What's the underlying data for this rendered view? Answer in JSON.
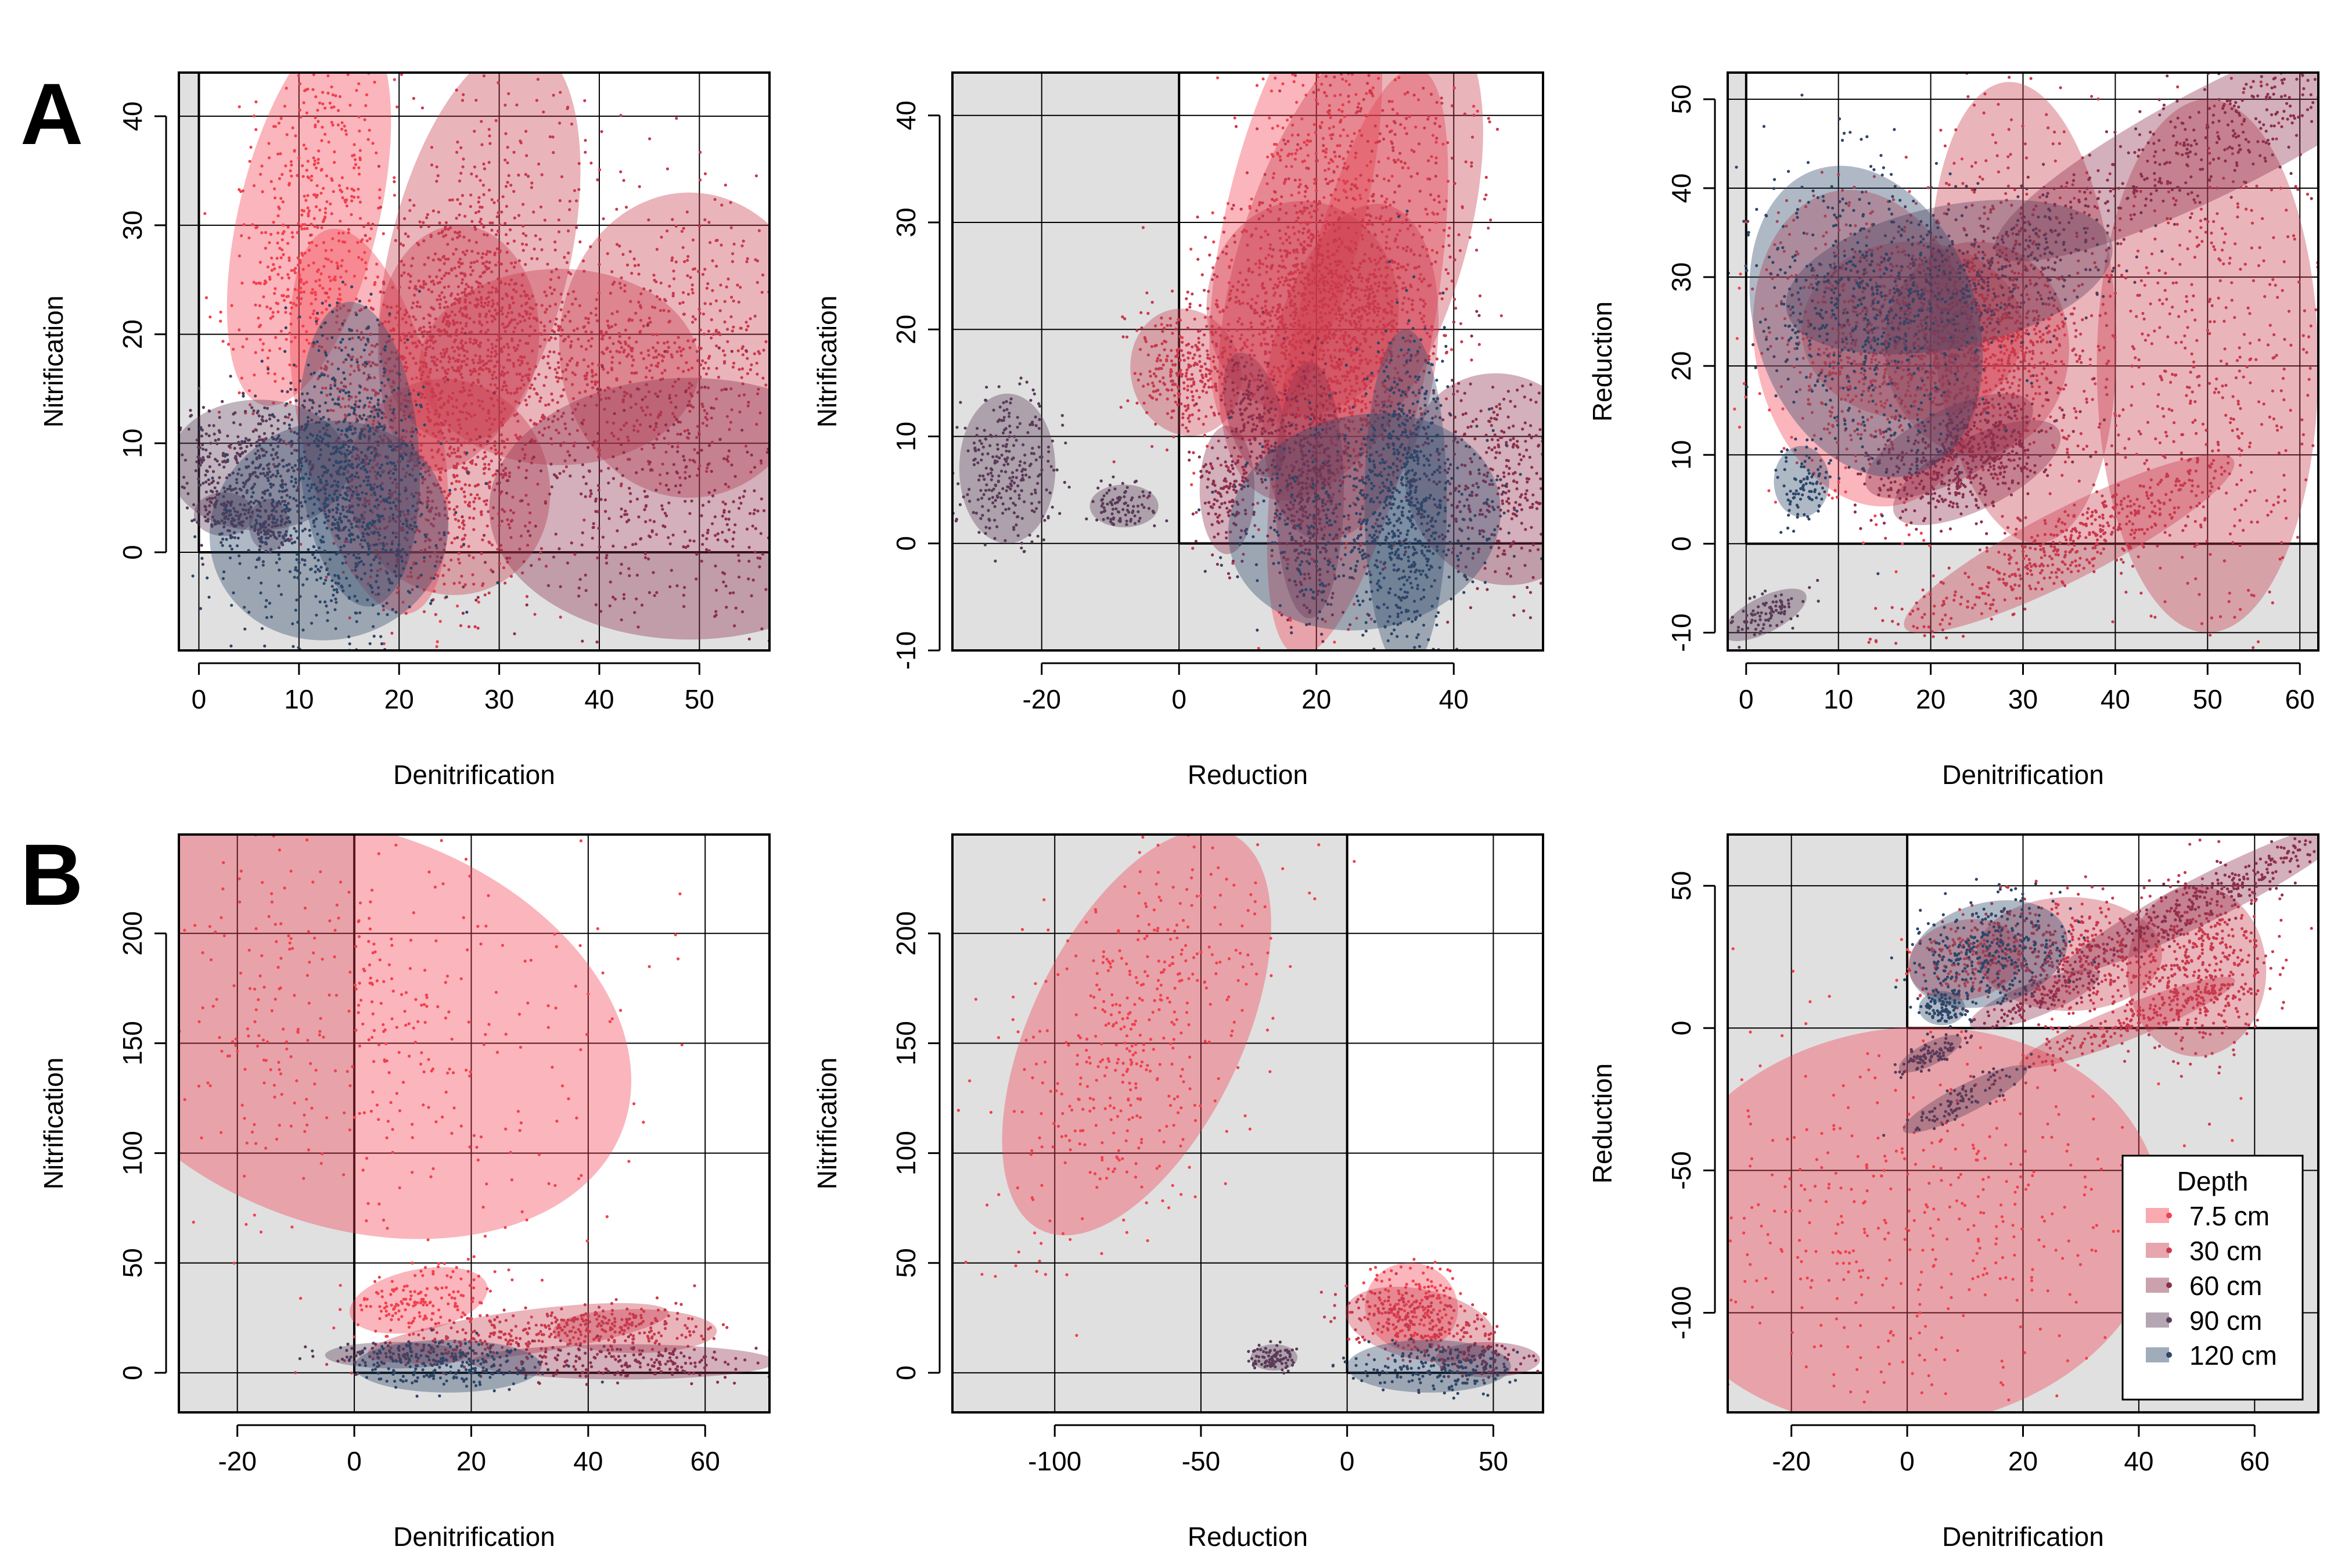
{
  "figure": {
    "panel_letters": [
      "A",
      "B"
    ],
    "legend": {
      "title": "Depth",
      "items": [
        {
          "label": "7.5 cm",
          "color": "#f2404e"
        },
        {
          "label": "30 cm",
          "color": "#c9394c"
        },
        {
          "label": "60 cm",
          "color": "#8c2f4c"
        },
        {
          "label": "90 cm",
          "color": "#5a3a58"
        },
        {
          "label": "120 cm",
          "color": "#2e4668"
        }
      ]
    },
    "colors": {
      "quadrant_shade": "#e0e0e0",
      "plot_background": "#ffffff"
    }
  },
  "chart_data": [
    {
      "type": "scatter",
      "row": "A",
      "xlabel": "Denitrification",
      "ylabel": "Nitrification",
      "xlim": [
        -2,
        57
      ],
      "ylim": [
        -9,
        44
      ],
      "xticks": [
        0,
        10,
        20,
        30,
        40,
        50
      ],
      "yticks": [
        0,
        10,
        20,
        30,
        40
      ],
      "ellipses": [
        {
          "depth": "7.5 cm",
          "cx": 11,
          "cy": 31,
          "sx": 3.5,
          "sy": 9,
          "r": -0.35
        },
        {
          "depth": "7.5 cm",
          "cx": 17,
          "cy": 12,
          "sx": 3.5,
          "sy": 9,
          "r": 0.3
        },
        {
          "depth": "30 cm",
          "cx": 28,
          "cy": 27,
          "sx": 4.5,
          "sy": 10,
          "r": -0.35
        },
        {
          "depth": "30 cm",
          "cx": 36,
          "cy": 17,
          "sx": 7,
          "sy": 4.5,
          "r": 0
        },
        {
          "depth": "30 cm",
          "cx": 49,
          "cy": 19,
          "sx": 6.5,
          "sy": 7,
          "r": 0
        },
        {
          "depth": "30 cm",
          "cx": 26,
          "cy": 20,
          "sx": 4,
          "sy": 5,
          "r": 0
        },
        {
          "depth": "30 cm",
          "cx": 25,
          "cy": 6,
          "sx": 5,
          "sy": 5,
          "r": 0.5
        },
        {
          "depth": "60 cm",
          "cx": 49,
          "cy": 4,
          "sx": 10,
          "sy": 6,
          "r": 0
        },
        {
          "depth": "90 cm",
          "cx": 6,
          "cy": 8,
          "sx": 4.5,
          "sy": 3,
          "r": 0
        },
        {
          "depth": "90 cm",
          "cx": 2.5,
          "cy": 3.5,
          "sx": 1.5,
          "sy": 1,
          "r": 0
        },
        {
          "depth": "90 cm",
          "cx": 7,
          "cy": 2.5,
          "sx": 1,
          "sy": 1.2,
          "r": 0
        },
        {
          "depth": "120 cm",
          "cx": 13,
          "cy": 2,
          "sx": 6,
          "sy": 5,
          "r": 0.4
        },
        {
          "depth": "120 cm",
          "cx": 16,
          "cy": 9,
          "sx": 3,
          "sy": 7,
          "r": 0.1
        }
      ]
    },
    {
      "type": "scatter",
      "row": "A",
      "xlabel": "Reduction",
      "ylabel": "Nitrification",
      "xlim": [
        -33,
        53
      ],
      "ylim": [
        -10,
        44
      ],
      "xticks": [
        -20,
        0,
        20,
        40
      ],
      "yticks": [
        -10,
        0,
        10,
        20,
        30,
        40
      ],
      "ellipses": [
        {
          "depth": "7.5 cm",
          "cx": 17,
          "cy": 31,
          "sx": 5,
          "sy": 11,
          "r": -0.35
        },
        {
          "depth": "7.5 cm",
          "cx": 26,
          "cy": 17,
          "sx": 5,
          "sy": 14,
          "r": -0.3
        },
        {
          "depth": "30 cm",
          "cx": 25,
          "cy": 27,
          "sx": 8,
          "sy": 12,
          "r": -0.5
        },
        {
          "depth": "30 cm",
          "cx": 18,
          "cy": 22,
          "sx": 7,
          "sy": 5,
          "r": 0
        },
        {
          "depth": "30 cm",
          "cx": 1,
          "cy": 16,
          "sx": 4,
          "sy": 3,
          "r": 0.4
        },
        {
          "depth": "30 cm",
          "cx": 25,
          "cy": 16,
          "sx": 6,
          "sy": 8,
          "r": -0.3
        },
        {
          "depth": "60 cm",
          "cx": 47,
          "cy": 6,
          "sx": 7,
          "sy": 5,
          "r": 0.5
        },
        {
          "depth": "60 cm",
          "cx": 19,
          "cy": 5,
          "sx": 2.5,
          "sy": 6,
          "r": 0
        },
        {
          "depth": "60 cm",
          "cx": 11,
          "cy": 12,
          "sx": 2,
          "sy": 3,
          "r": 0.4
        },
        {
          "depth": "60 cm",
          "cx": 7,
          "cy": 5,
          "sx": 2,
          "sy": 3,
          "r": 0
        },
        {
          "depth": "90 cm",
          "cx": -25,
          "cy": 7,
          "sx": 3.5,
          "sy": 3.5,
          "r": 0
        },
        {
          "depth": "90 cm",
          "cx": -8,
          "cy": 3.5,
          "sx": 2.5,
          "sy": 1,
          "r": 0
        },
        {
          "depth": "120 cm",
          "cx": 27,
          "cy": 2,
          "sx": 10,
          "sy": 5,
          "r": 0.3
        },
        {
          "depth": "120 cm",
          "cx": 33,
          "cy": 4,
          "sx": 3,
          "sy": 8,
          "r": 0
        }
      ]
    },
    {
      "type": "scatter",
      "row": "A",
      "xlabel": "Denitrification",
      "ylabel": "Reduction",
      "xlim": [
        -2,
        62
      ],
      "ylim": [
        -12,
        53
      ],
      "xticks": [
        0,
        10,
        20,
        30,
        40,
        50,
        60
      ],
      "yticks": [
        -10,
        0,
        10,
        20,
        30,
        40,
        50
      ],
      "ellipses": [
        {
          "depth": "7.5 cm",
          "cx": 13,
          "cy": 22,
          "sx": 6,
          "sy": 9,
          "r": 0.3
        },
        {
          "depth": "7.5 cm",
          "cx": 18,
          "cy": 24,
          "sx": 6,
          "sy": 5,
          "r": 0
        },
        {
          "depth": "30 cm",
          "cx": 30,
          "cy": 26,
          "sx": 5,
          "sy": 13,
          "r": 0.1
        },
        {
          "depth": "30 cm",
          "cx": 50,
          "cy": 20,
          "sx": 6,
          "sy": 15,
          "r": 0
        },
        {
          "depth": "30 cm",
          "cx": 35,
          "cy": 0,
          "sx": 10,
          "sy": 2,
          "r": 0.8
        },
        {
          "depth": "30 cm",
          "cx": 25,
          "cy": 22,
          "sx": 5,
          "sy": 6,
          "r": 0
        },
        {
          "depth": "60 cm",
          "cx": 52,
          "cy": 46,
          "sx": 14,
          "sy": 3,
          "r": 0.8
        },
        {
          "depth": "60 cm",
          "cx": 22,
          "cy": 11,
          "sx": 5,
          "sy": 2,
          "r": 0.8
        },
        {
          "depth": "60 cm",
          "cx": 25,
          "cy": 8,
          "sx": 5,
          "sy": 2,
          "r": 0.8
        },
        {
          "depth": "90 cm",
          "cx": 2,
          "cy": -8,
          "sx": 2.5,
          "sy": 1,
          "r": 0.8
        },
        {
          "depth": "90 cm",
          "cx": 22,
          "cy": 30,
          "sx": 9,
          "sy": 4,
          "r": 0.3
        },
        {
          "depth": "120 cm",
          "cx": 13,
          "cy": 25,
          "sx": 6,
          "sy": 9,
          "r": 0.5
        },
        {
          "depth": "120 cm",
          "cx": 6,
          "cy": 7,
          "sx": 1.5,
          "sy": 2,
          "r": 0
        }
      ]
    },
    {
      "type": "scatter",
      "row": "B",
      "xlabel": "Denitrification",
      "ylabel": "Nitrification",
      "xlim": [
        -30,
        71
      ],
      "ylim": [
        -18,
        245
      ],
      "xticks": [
        -20,
        0,
        20,
        40,
        60
      ],
      "yticks": [
        0,
        50,
        100,
        150,
        200
      ],
      "ellipses": [
        {
          "depth": "7.5 cm",
          "cx": -1,
          "cy": 157,
          "sx": 25,
          "sy": 45,
          "r": -0.55
        },
        {
          "depth": "7.5 cm",
          "cx": 11,
          "cy": 33,
          "sx": 6,
          "sy": 7,
          "r": 0.3
        },
        {
          "depth": "30 cm",
          "cx": 28,
          "cy": 18,
          "sx": 13,
          "sy": 5,
          "r": 0.2
        },
        {
          "depth": "30 cm",
          "cx": 48,
          "cy": 19,
          "sx": 7,
          "sy": 5,
          "r": 0
        },
        {
          "depth": "60 cm",
          "cx": 46,
          "cy": 5,
          "sx": 13,
          "sy": 4,
          "r": 0
        },
        {
          "depth": "90 cm",
          "cx": 7,
          "cy": 8,
          "sx": 6,
          "sy": 3,
          "r": 0
        },
        {
          "depth": "120 cm",
          "cx": 16,
          "cy": 3,
          "sx": 8,
          "sy": 6,
          "r": 0
        }
      ]
    },
    {
      "type": "scatter",
      "row": "B",
      "xlabel": "Reduction",
      "ylabel": "Nitrification",
      "xlim": [
        -135,
        67
      ],
      "ylim": [
        -18,
        245
      ],
      "xticks": [
        -100,
        -50,
        0,
        50
      ],
      "yticks": [
        0,
        50,
        100,
        150,
        200
      ],
      "ellipses": [
        {
          "depth": "7.5 cm",
          "cx": -72,
          "cy": 155,
          "sx": 18,
          "sy": 50,
          "r": -0.75
        },
        {
          "depth": "7.5 cm",
          "cx": 22,
          "cy": 30,
          "sx": 8,
          "sy": 10,
          "r": -0.5
        },
        {
          "depth": "30 cm",
          "cx": 25,
          "cy": 22,
          "sx": 13,
          "sy": 8,
          "r": -0.3
        },
        {
          "depth": "60 cm",
          "cx": 48,
          "cy": 6,
          "sx": 9,
          "sy": 4,
          "r": 0
        },
        {
          "depth": "90 cm",
          "cx": -25,
          "cy": 7,
          "sx": 4,
          "sy": 3,
          "r": 0
        },
        {
          "depth": "120 cm",
          "cx": 28,
          "cy": 3,
          "sx": 14,
          "sy": 6,
          "r": 0
        }
      ]
    },
    {
      "type": "scatter",
      "row": "B",
      "xlabel": "Denitrification",
      "ylabel": "Reduction",
      "xlim": [
        -31,
        71
      ],
      "ylim": [
        -135,
        68
      ],
      "xticks": [
        -20,
        0,
        20,
        40,
        60
      ],
      "yticks": [
        -100,
        -50,
        0,
        50
      ],
      "ellipses": [
        {
          "depth": "7.5 cm",
          "cx": 0,
          "cy": -70,
          "sx": 22,
          "sy": 35,
          "r": 0.2
        },
        {
          "depth": "7.5 cm",
          "cx": 10,
          "cy": 24,
          "sx": 5,
          "sy": 7,
          "r": 0.3
        },
        {
          "depth": "30 cm",
          "cx": 50,
          "cy": 20,
          "sx": 6,
          "sy": 15,
          "r": 0
        },
        {
          "depth": "30 cm",
          "cx": 38,
          "cy": 2,
          "sx": 10,
          "sy": 3,
          "r": 0.6
        },
        {
          "depth": "30 cm",
          "cx": 28,
          "cy": 26,
          "sx": 8,
          "sy": 10,
          "r": 0
        },
        {
          "depth": "60 cm",
          "cx": 52,
          "cy": 46,
          "sx": 14,
          "sy": 4,
          "r": 0.8
        },
        {
          "depth": "60 cm",
          "cx": 22,
          "cy": 10,
          "sx": 6,
          "sy": 3,
          "r": 0.6
        },
        {
          "depth": "90 cm",
          "cx": 4,
          "cy": -9,
          "sx": 3,
          "sy": 2,
          "r": 0.8
        },
        {
          "depth": "90 cm",
          "cx": 10,
          "cy": -25,
          "sx": 6,
          "sy": 2.5,
          "r": 0.8
        },
        {
          "depth": "120 cm",
          "cx": 14,
          "cy": 26,
          "sx": 7,
          "sy": 9,
          "r": 0.4
        },
        {
          "depth": "120 cm",
          "cx": 6,
          "cy": 7,
          "sx": 2,
          "sy": 3,
          "r": 0
        }
      ]
    }
  ]
}
